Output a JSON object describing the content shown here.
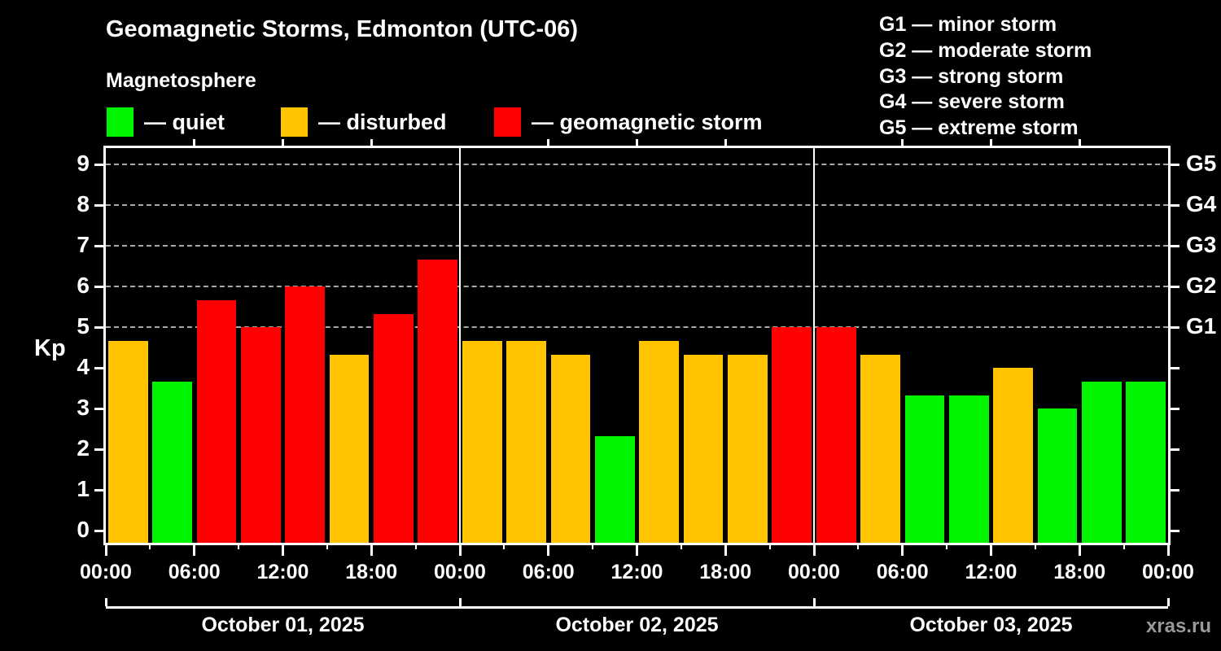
{
  "header": {
    "title": "Geomagnetic Storms, Edmonton (UTC-06)",
    "subtitle": "Magnetosphere"
  },
  "legend": {
    "items": [
      {
        "key": "quiet",
        "color": "#00f400",
        "label": "— quiet"
      },
      {
        "key": "disturbed",
        "color": "#ffc300",
        "label": "— disturbed"
      },
      {
        "key": "storm",
        "color": "#ff0000",
        "label": "— geomagnetic storm"
      }
    ]
  },
  "g_legend": {
    "items": [
      "G1 — minor storm",
      "G2 — moderate storm",
      "G3 — strong storm",
      "G4 — severe storm",
      "G5 — extreme storm"
    ]
  },
  "axes": {
    "kp_label": "Kp",
    "y_ticks": [
      "0",
      "1",
      "2",
      "3",
      "4",
      "5",
      "6",
      "7",
      "8",
      "9"
    ],
    "right_labels": [
      {
        "kp": 5,
        "label": "G1"
      },
      {
        "kp": 6,
        "label": "G2"
      },
      {
        "kp": 7,
        "label": "G3"
      },
      {
        "kp": 8,
        "label": "G4"
      },
      {
        "kp": 9,
        "label": "G5"
      }
    ],
    "x_labels": [
      "00:00",
      "06:00",
      "12:00",
      "18:00",
      "00:00",
      "06:00",
      "12:00",
      "18:00",
      "00:00",
      "06:00",
      "12:00",
      "18:00",
      "00:00"
    ],
    "gridline_levels": [
      5,
      6,
      7,
      8,
      9
    ]
  },
  "colors": {
    "quiet": "#00f400",
    "disturbed": "#ffc300",
    "storm": "#ff0000",
    "gridline": "#a8a8a8",
    "axis": "#ffffff",
    "watermark": "#999999"
  },
  "watermark": "xras.ru",
  "chart_data": {
    "type": "bar",
    "title": "Geomagnetic Storms, Edmonton (UTC-06)",
    "subtitle": "Magnetosphere",
    "ylabel": "Kp",
    "ylim": [
      0,
      9
    ],
    "interval_hours": 3,
    "bars_per_day": 8,
    "grid": "horizontal dashed at Kp 5..9 (G1..G5)",
    "legend_position": "top",
    "days": [
      {
        "date": "October 01, 2025",
        "kp": [
          4.67,
          3.67,
          5.67,
          5.0,
          6.0,
          4.33,
          5.33,
          6.67
        ],
        "status": [
          "disturbed",
          "quiet",
          "storm",
          "storm",
          "storm",
          "disturbed",
          "storm",
          "storm"
        ]
      },
      {
        "date": "October 02, 2025",
        "kp": [
          4.67,
          4.67,
          4.33,
          2.33,
          4.67,
          4.33,
          4.33,
          5.0
        ],
        "status": [
          "disturbed",
          "disturbed",
          "disturbed",
          "quiet",
          "disturbed",
          "disturbed",
          "disturbed",
          "storm"
        ]
      },
      {
        "date": "October 03, 2025",
        "kp": [
          5.0,
          4.33,
          3.33,
          3.33,
          4.0,
          3.0,
          3.67,
          3.67
        ],
        "status": [
          "storm",
          "disturbed",
          "quiet",
          "quiet",
          "disturbed",
          "quiet",
          "quiet",
          "quiet"
        ]
      }
    ]
  }
}
